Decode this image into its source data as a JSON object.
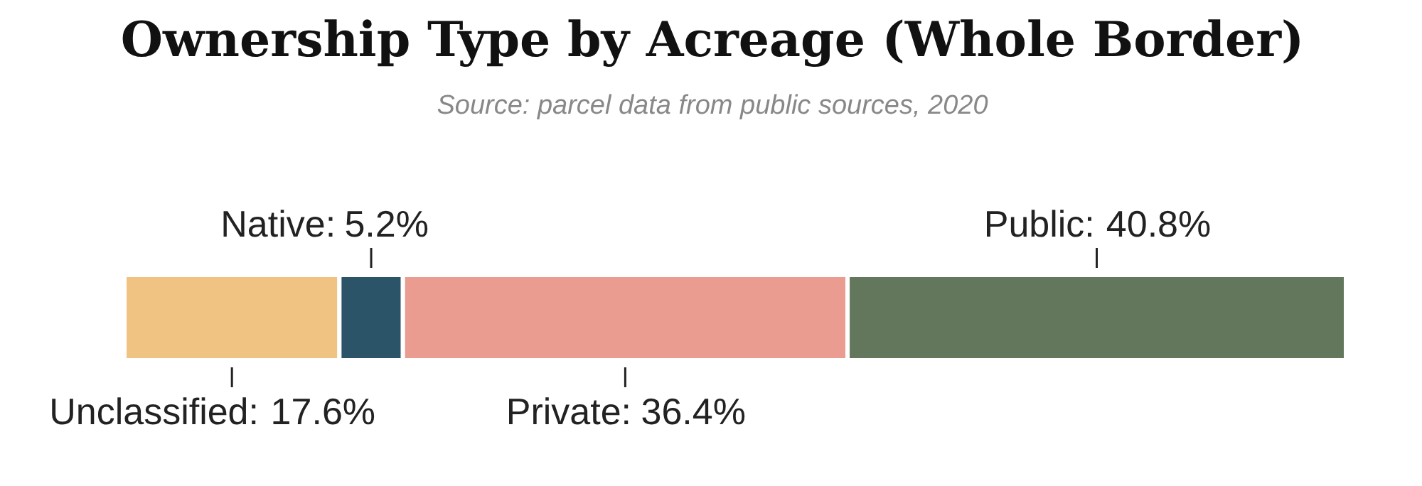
{
  "chart_data": {
    "type": "bar",
    "orientation": "horizontal",
    "stacked": true,
    "title": "Ownership Type by Acreage (Whole Border)",
    "subtitle": "Source: parcel data from public sources, 2020",
    "categories": [
      null
    ],
    "tick_labels": false,
    "grid": false,
    "data_labels": true,
    "series": [
      {
        "name": "Unclassified:",
        "color": "#f0c382",
        "values": [
          17.6
        ],
        "value_labels": [
          "17.6%"
        ]
      },
      {
        "name": "Native:",
        "color": "#2c5469",
        "values": [
          5.2
        ],
        "value_labels": [
          "5.2%"
        ]
      },
      {
        "name": "Private:",
        "color": "#eb9c90",
        "values": [
          36.4
        ],
        "value_labels": [
          "36.4%"
        ]
      },
      {
        "name": "Public:",
        "color": "#62775b",
        "values": [
          40.8
        ],
        "value_labels": [
          "40.8%"
        ]
      }
    ]
  }
}
